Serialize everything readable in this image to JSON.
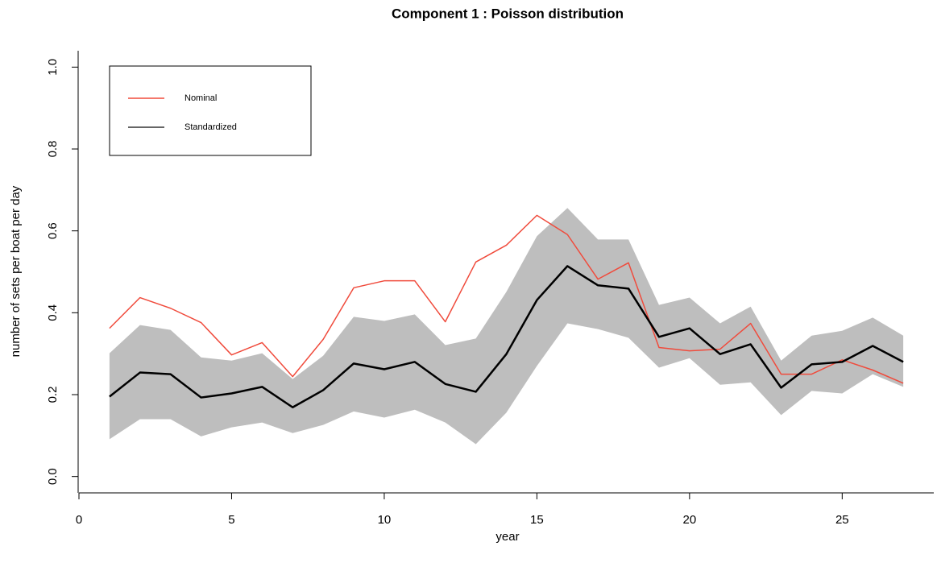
{
  "chart_data": {
    "type": "line",
    "title": "Component 1 : Poisson distribution",
    "xlabel": "year",
    "ylabel": "number of sets per boat per day",
    "x": [
      1,
      2,
      3,
      4,
      5,
      6,
      7,
      8,
      9,
      10,
      11,
      12,
      13,
      14,
      15,
      16,
      17,
      18,
      19,
      20,
      21,
      22,
      23,
      24,
      25,
      26,
      27
    ],
    "series": [
      {
        "name": "Nominal",
        "color": "#f04b3c",
        "width": 1.5,
        "values": [
          0.362,
          0.437,
          0.411,
          0.376,
          0.297,
          0.327,
          0.244,
          0.335,
          0.461,
          0.478,
          0.478,
          0.378,
          0.524,
          0.565,
          0.638,
          0.591,
          0.482,
          0.522,
          0.315,
          0.307,
          0.311,
          0.374,
          0.25,
          0.25,
          0.285,
          0.26,
          0.228
        ]
      },
      {
        "name": "Standardized",
        "color": "#000000",
        "width": 2.5,
        "values": [
          0.195,
          0.254,
          0.25,
          0.193,
          0.203,
          0.219,
          0.169,
          0.211,
          0.276,
          0.262,
          0.28,
          0.226,
          0.207,
          0.299,
          0.431,
          0.514,
          0.467,
          0.459,
          0.341,
          0.362,
          0.299,
          0.323,
          0.217,
          0.274,
          0.28,
          0.319,
          0.28
        ]
      }
    ],
    "band": {
      "color": "#bebebe",
      "upper": [
        0.301,
        0.37,
        0.358,
        0.291,
        0.283,
        0.301,
        0.238,
        0.295,
        0.39,
        0.38,
        0.396,
        0.321,
        0.337,
        0.451,
        0.587,
        0.656,
        0.579,
        0.579,
        0.419,
        0.437,
        0.374,
        0.415,
        0.283,
        0.344,
        0.356,
        0.388,
        0.344
      ],
      "lower": [
        0.091,
        0.14,
        0.14,
        0.098,
        0.12,
        0.132,
        0.106,
        0.126,
        0.159,
        0.144,
        0.163,
        0.132,
        0.079,
        0.156,
        0.27,
        0.374,
        0.36,
        0.339,
        0.266,
        0.289,
        0.224,
        0.23,
        0.15,
        0.209,
        0.203,
        0.25,
        0.219
      ]
    },
    "xlim": [
      0,
      28
    ],
    "ylim": [
      -0.04,
      1.04
    ],
    "xticks": [
      0,
      5,
      10,
      15,
      20,
      25
    ],
    "yticks": [
      {
        "value": 0,
        "label": "0.0"
      },
      0.2,
      0.4,
      0.6,
      0.8,
      {
        "value": 1,
        "label": "1.0"
      }
    ],
    "legend": "top-left"
  }
}
